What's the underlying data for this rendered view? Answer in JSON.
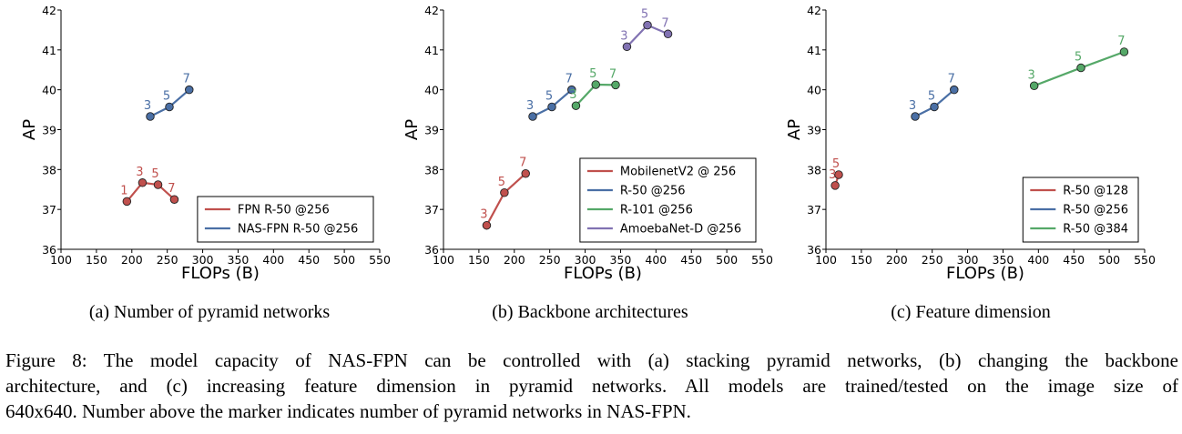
{
  "chart_data": [
    {
      "type": "line",
      "xlabel": "FLOPs (B)",
      "ylabel": "AP",
      "xlim": [
        100,
        550
      ],
      "ylim": [
        36,
        42
      ],
      "xticks": [
        "100",
        "150",
        "200",
        "250",
        "300",
        "350",
        "400",
        "450",
        "500",
        "550"
      ],
      "yticks": [
        "36",
        "37",
        "38",
        "39",
        "40",
        "41",
        "42"
      ],
      "legend_position": "lower-right",
      "grid": false,
      "series": [
        {
          "name": "FPN R-50 @256",
          "color": "#c0504d",
          "x": [
            193,
            215,
            237,
            260
          ],
          "y": [
            37.2,
            37.67,
            37.62,
            37.25
          ],
          "labels": [
            "1",
            "3",
            "5",
            "7"
          ]
        },
        {
          "name": "NAS-FPN R-50 @256",
          "color": "#4a6fa5",
          "x": [
            226,
            253,
            281
          ],
          "y": [
            39.33,
            39.57,
            40.0
          ],
          "labels": [
            "3",
            "5",
            "7"
          ]
        }
      ]
    },
    {
      "type": "line",
      "xlabel": "FLOPs (B)",
      "ylabel": "AP",
      "xlim": [
        100,
        550
      ],
      "ylim": [
        36,
        42
      ],
      "xticks": [
        "100",
        "150",
        "200",
        "250",
        "300",
        "350",
        "400",
        "450",
        "500",
        "550"
      ],
      "yticks": [
        "36",
        "37",
        "38",
        "39",
        "40",
        "41",
        "42"
      ],
      "legend_position": "lower-right",
      "grid": false,
      "series": [
        {
          "name": "MobilenetV2 @ 256",
          "color": "#c0504d",
          "x": [
            161,
            186,
            216
          ],
          "y": [
            36.6,
            37.42,
            37.9
          ],
          "labels": [
            "3",
            "5",
            "7"
          ]
        },
        {
          "name": "R-50 @256",
          "color": "#4a6fa5",
          "x": [
            226,
            253,
            281
          ],
          "y": [
            39.33,
            39.57,
            40.0
          ],
          "labels": [
            "3",
            "5",
            "7"
          ]
        },
        {
          "name": "R-101 @256",
          "color": "#55a868",
          "x": [
            287,
            315,
            343
          ],
          "y": [
            39.6,
            40.13,
            40.12
          ],
          "labels": [
            "3",
            "5",
            "7"
          ]
        },
        {
          "name": "AmoebaNet-D @256",
          "color": "#8172b2",
          "x": [
            359,
            388,
            417
          ],
          "y": [
            41.08,
            41.62,
            41.4
          ],
          "labels": [
            "3",
            "5",
            "7"
          ]
        }
      ]
    },
    {
      "type": "line",
      "xlabel": "FLOPs (B)",
      "ylabel": "AP",
      "xlim": [
        100,
        550
      ],
      "ylim": [
        36,
        42
      ],
      "xticks": [
        "100",
        "150",
        "200",
        "250",
        "300",
        "350",
        "400",
        "450",
        "500",
        "550"
      ],
      "yticks": [
        "36",
        "37",
        "38",
        "39",
        "40",
        "41",
        "42"
      ],
      "legend_position": "lower-right",
      "grid": false,
      "series": [
        {
          "name": "R-50 @128",
          "color": "#c0504d",
          "x": [
            113,
            118
          ],
          "y": [
            37.6,
            37.87
          ],
          "labels": [
            "3",
            "5"
          ]
        },
        {
          "name": "R-50 @256",
          "color": "#4a6fa5",
          "x": [
            226,
            253,
            281
          ],
          "y": [
            39.33,
            39.57,
            40.0
          ],
          "labels": [
            "3",
            "5",
            "7"
          ]
        },
        {
          "name": "R-50 @384",
          "color": "#55a868",
          "x": [
            394,
            460,
            521
          ],
          "y": [
            40.1,
            40.55,
            40.95
          ],
          "labels": [
            "3",
            "5",
            "7"
          ]
        }
      ]
    }
  ],
  "subcaptions": [
    "(a) Number of pyramid networks",
    "(b) Backbone architectures",
    "(c) Feature dimension"
  ],
  "figure_caption": {
    "line1": "Figure 8: The model capacity of NAS-FPN can be controlled with (a) stacking pyramid networks, (b) changing the backbone",
    "line2": "architecture, and (c) increasing feature dimension in pyramid networks.  All models are trained/tested on the image size of",
    "line3": "640x640. Number above the marker indicates number of pyramid networks in NAS-FPN."
  }
}
